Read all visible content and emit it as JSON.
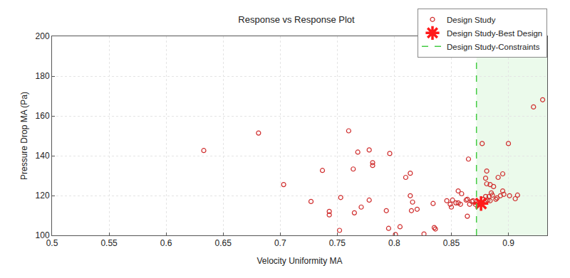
{
  "chart_data": {
    "type": "scatter",
    "title": "Response vs Response Plot",
    "x_label": "Velocity Uniformity MA",
    "y_label": "Pressure Drop MA (Pa)",
    "xlim": [
      0.5,
      0.934
    ],
    "ylim": [
      100,
      200
    ],
    "xticks": [
      0.5,
      0.55,
      0.6,
      0.65,
      0.7,
      0.75,
      0.8,
      0.85,
      0.9
    ],
    "yticks": [
      100,
      120,
      140,
      160,
      180,
      200
    ],
    "grid": true,
    "legend": "top-right",
    "series": [
      {
        "name": "Design Study",
        "type": "scatter",
        "marker": "circle-open",
        "color": "#d02f2f",
        "x": [
          0.633,
          0.681,
          0.703,
          0.727,
          0.737,
          0.743,
          0.743,
          0.752,
          0.753,
          0.76,
          0.764,
          0.765,
          0.768,
          0.771,
          0.778,
          0.778,
          0.781,
          0.781,
          0.793,
          0.795,
          0.796,
          0.801,
          0.805,
          0.81,
          0.814,
          0.814,
          0.815,
          0.816,
          0.82,
          0.826,
          0.834,
          0.835,
          0.836,
          0.846,
          0.849,
          0.851,
          0.85,
          0.854,
          0.856,
          0.856,
          0.859,
          0.858,
          0.863,
          0.864,
          0.865,
          0.864,
          0.866,
          0.868,
          0.869,
          0.871,
          0.874,
          0.877,
          0.881,
          0.88,
          0.881,
          0.882,
          0.883,
          0.884,
          0.885,
          0.886,
          0.887,
          0.889,
          0.89,
          0.891,
          0.893,
          0.895,
          0.895,
          0.896,
          0.9,
          0.901,
          0.906,
          0.908,
          0.922,
          0.93,
          0.88,
          0.884,
          0.878,
          0.88
        ],
        "values": [
          142.6,
          151.4,
          125.5,
          117.0,
          132.6,
          112.0,
          110.3,
          102.5,
          119.0,
          152.5,
          133.3,
          111.3,
          141.8,
          114.2,
          117.7,
          142.9,
          136.5,
          135.1,
          112.4,
          103.5,
          141.1,
          100.4,
          104.3,
          129.1,
          131.2,
          119.9,
          112.4,
          116.7,
          113.1,
          100.7,
          116.0,
          103.9,
          103.2,
          117.4,
          115.6,
          117.7,
          114.2,
          116.3,
          122.3,
          116.3,
          120.9,
          115.6,
          117.7,
          118.1,
          138.3,
          109.6,
          115.6,
          117.0,
          117.4,
          115.6,
          116.7,
          146.1,
          132.3,
          128.7,
          125.9,
          117.7,
          119.5,
          125.5,
          121.3,
          120.2,
          124.5,
          118.1,
          118.8,
          129.1,
          119.9,
          130.9,
          122.3,
          120.6,
          146.1,
          119.9,
          118.4,
          120.2,
          164.5,
          168.1,
          117.4,
          117.4,
          118.1,
          119.5
        ]
      },
      {
        "name": "Design Study-Best Design",
        "type": "scatter",
        "marker": "asterisk",
        "color": "#ff1a1a",
        "x": [
          0.876
        ],
        "values": [
          116.0
        ]
      },
      {
        "name": "Design Study-Constraints",
        "type": "line",
        "line_style": "dash",
        "color": "#44cc44",
        "x": [
          0.872,
          0.872
        ],
        "values": [
          100,
          200
        ]
      }
    ]
  }
}
